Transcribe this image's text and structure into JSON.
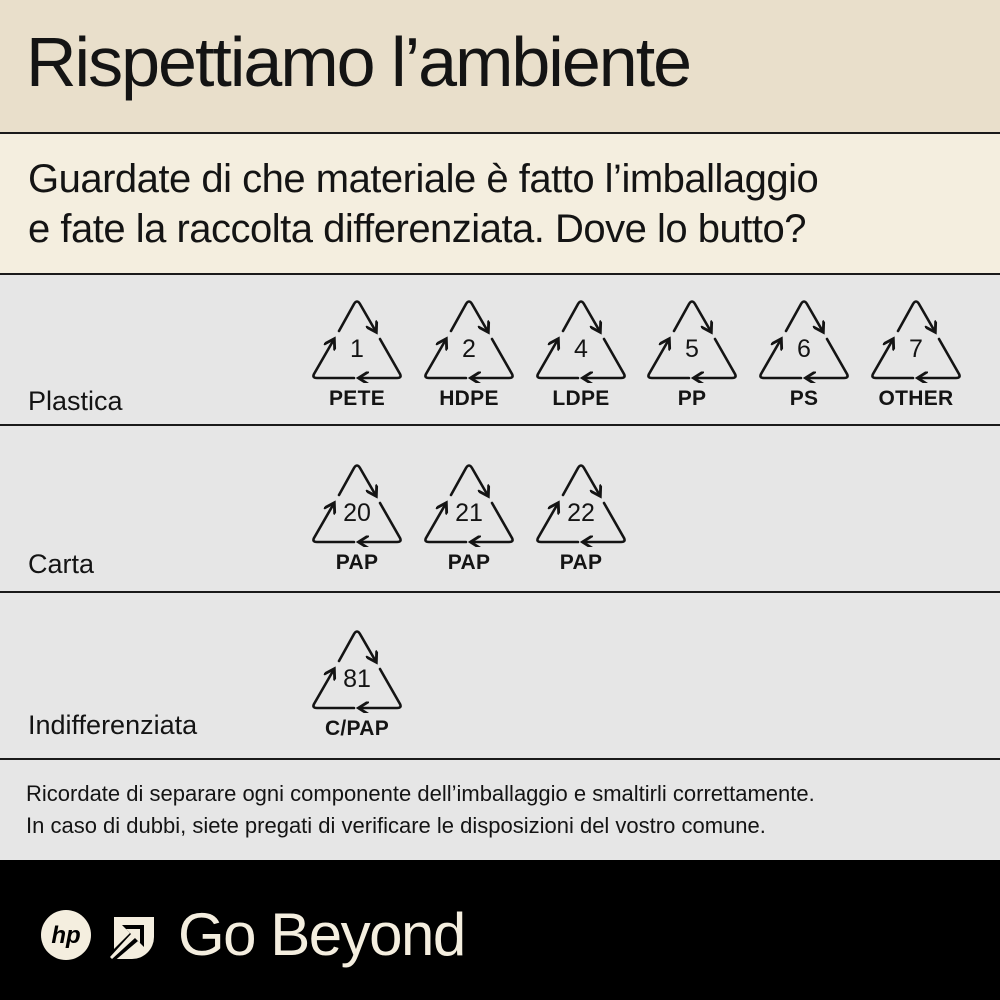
{
  "header": {
    "title": "Rispettiamo l’ambiente"
  },
  "subtitle": {
    "line1": "Guardate di che materiale è fatto l’imballaggio",
    "line2": "e fate la raccolta differenziata.  Dove lo butto?"
  },
  "categories": [
    {
      "label": "Plastica",
      "symbols": [
        {
          "number": "1",
          "code": "PETE"
        },
        {
          "number": "2",
          "code": "HDPE"
        },
        {
          "number": "4",
          "code": "LDPE"
        },
        {
          "number": "5",
          "code": "PP"
        },
        {
          "number": "6",
          "code": "PS"
        },
        {
          "number": "7",
          "code": "OTHER"
        }
      ]
    },
    {
      "label": "Carta",
      "symbols": [
        {
          "number": "20",
          "code": "PAP"
        },
        {
          "number": "21",
          "code": "PAP"
        },
        {
          "number": "22",
          "code": "PAP"
        }
      ]
    },
    {
      "label": "Indifferenziata",
      "symbols": [
        {
          "number": "81",
          "code": "C/PAP"
        }
      ]
    }
  ],
  "note": {
    "line1": "Ricordate di separare ogni componente dell’imballaggio e smaltirli correttamente.",
    "line2": "In caso di dubbi, siete pregati di verificare le disposizioni del vostro comune."
  },
  "footer": {
    "logo_text": "hp",
    "tagline": "Go Beyond",
    "icons": [
      "hp-logo-icon",
      "arrow-leaf-icon"
    ]
  },
  "colors": {
    "title_band": "#e9dfcb",
    "subtitle_band": "#f4eedf",
    "rows": "#e6e6e6",
    "footer": "#000000",
    "footer_text": "#f4eedf"
  }
}
